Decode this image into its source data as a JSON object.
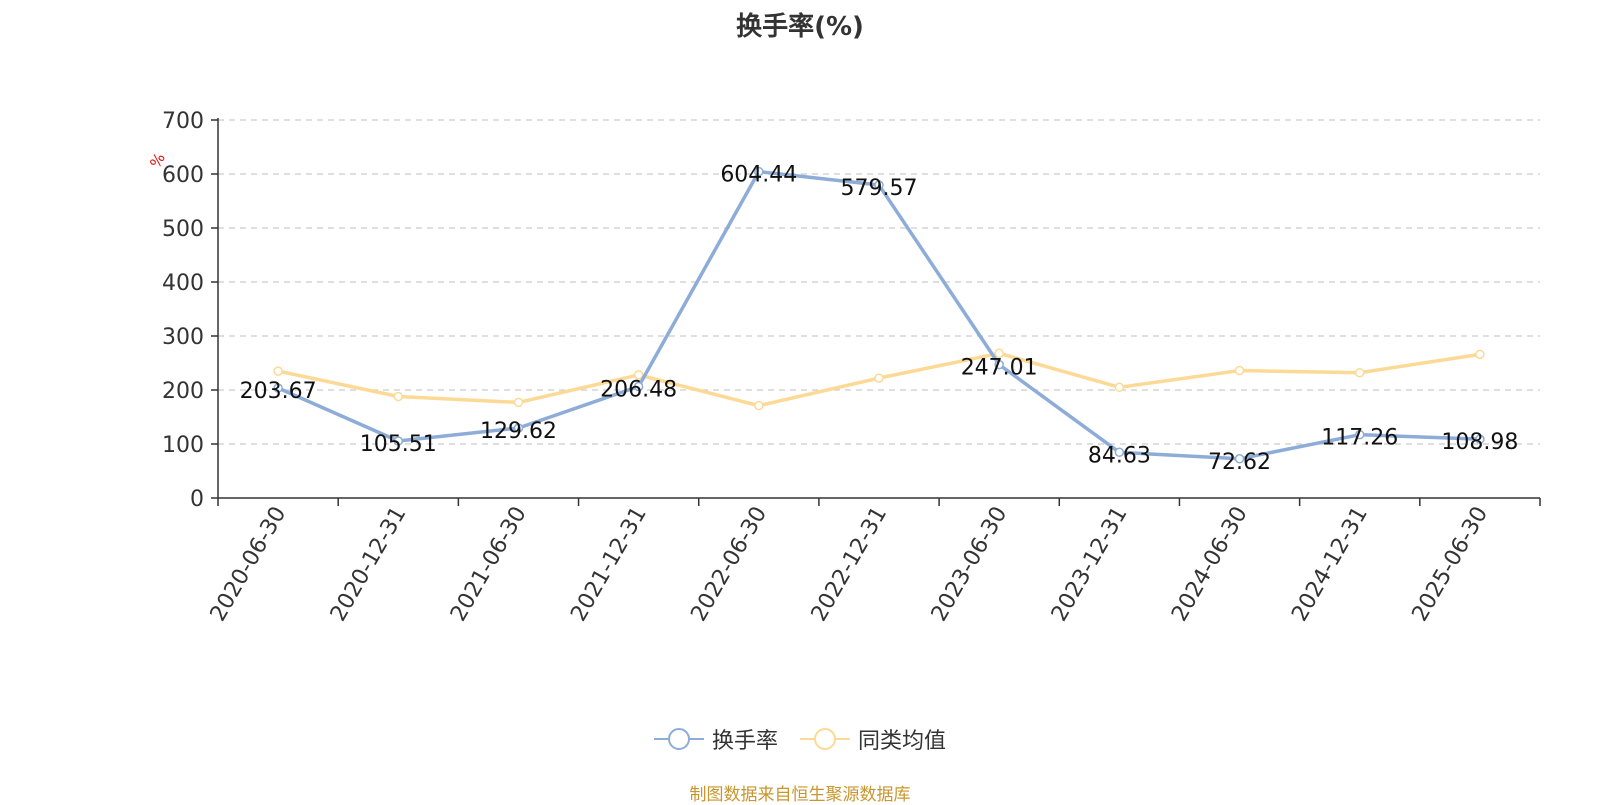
{
  "chart_data": {
    "type": "line",
    "title": "换手率(%)",
    "yunit": "%",
    "ylim": [
      0,
      700
    ],
    "yticks": [
      0,
      100,
      200,
      300,
      400,
      500,
      600,
      700
    ],
    "categories": [
      "2020-06-30",
      "2020-12-31",
      "2021-06-30",
      "2021-12-31",
      "2022-06-30",
      "2022-12-31",
      "2023-06-30",
      "2023-12-31",
      "2024-06-30",
      "2024-12-31",
      "2025-06-30"
    ],
    "series": [
      {
        "name": "换手率",
        "color": "#8eacd8",
        "values": [
          203.67,
          105.51,
          129.62,
          206.48,
          604.44,
          579.57,
          247.01,
          84.63,
          72.62,
          117.26,
          108.98
        ],
        "labels": [
          "203.67",
          "105.51",
          "129.62",
          "206.48",
          "604.44",
          "579.57",
          "247.01",
          "84.63",
          "72.62",
          "117.26",
          "108.98"
        ]
      },
      {
        "name": "同类均值",
        "color": "#fdd996",
        "values": [
          235,
          188,
          177,
          228,
          171,
          222,
          268,
          205,
          236,
          232,
          266
        ]
      }
    ],
    "grid": "dashed horizontal",
    "legend": "bottom-center"
  },
  "source_note": {
    "text": "制图数据来自恒生聚源数据库",
    "color": "#c8962e"
  }
}
